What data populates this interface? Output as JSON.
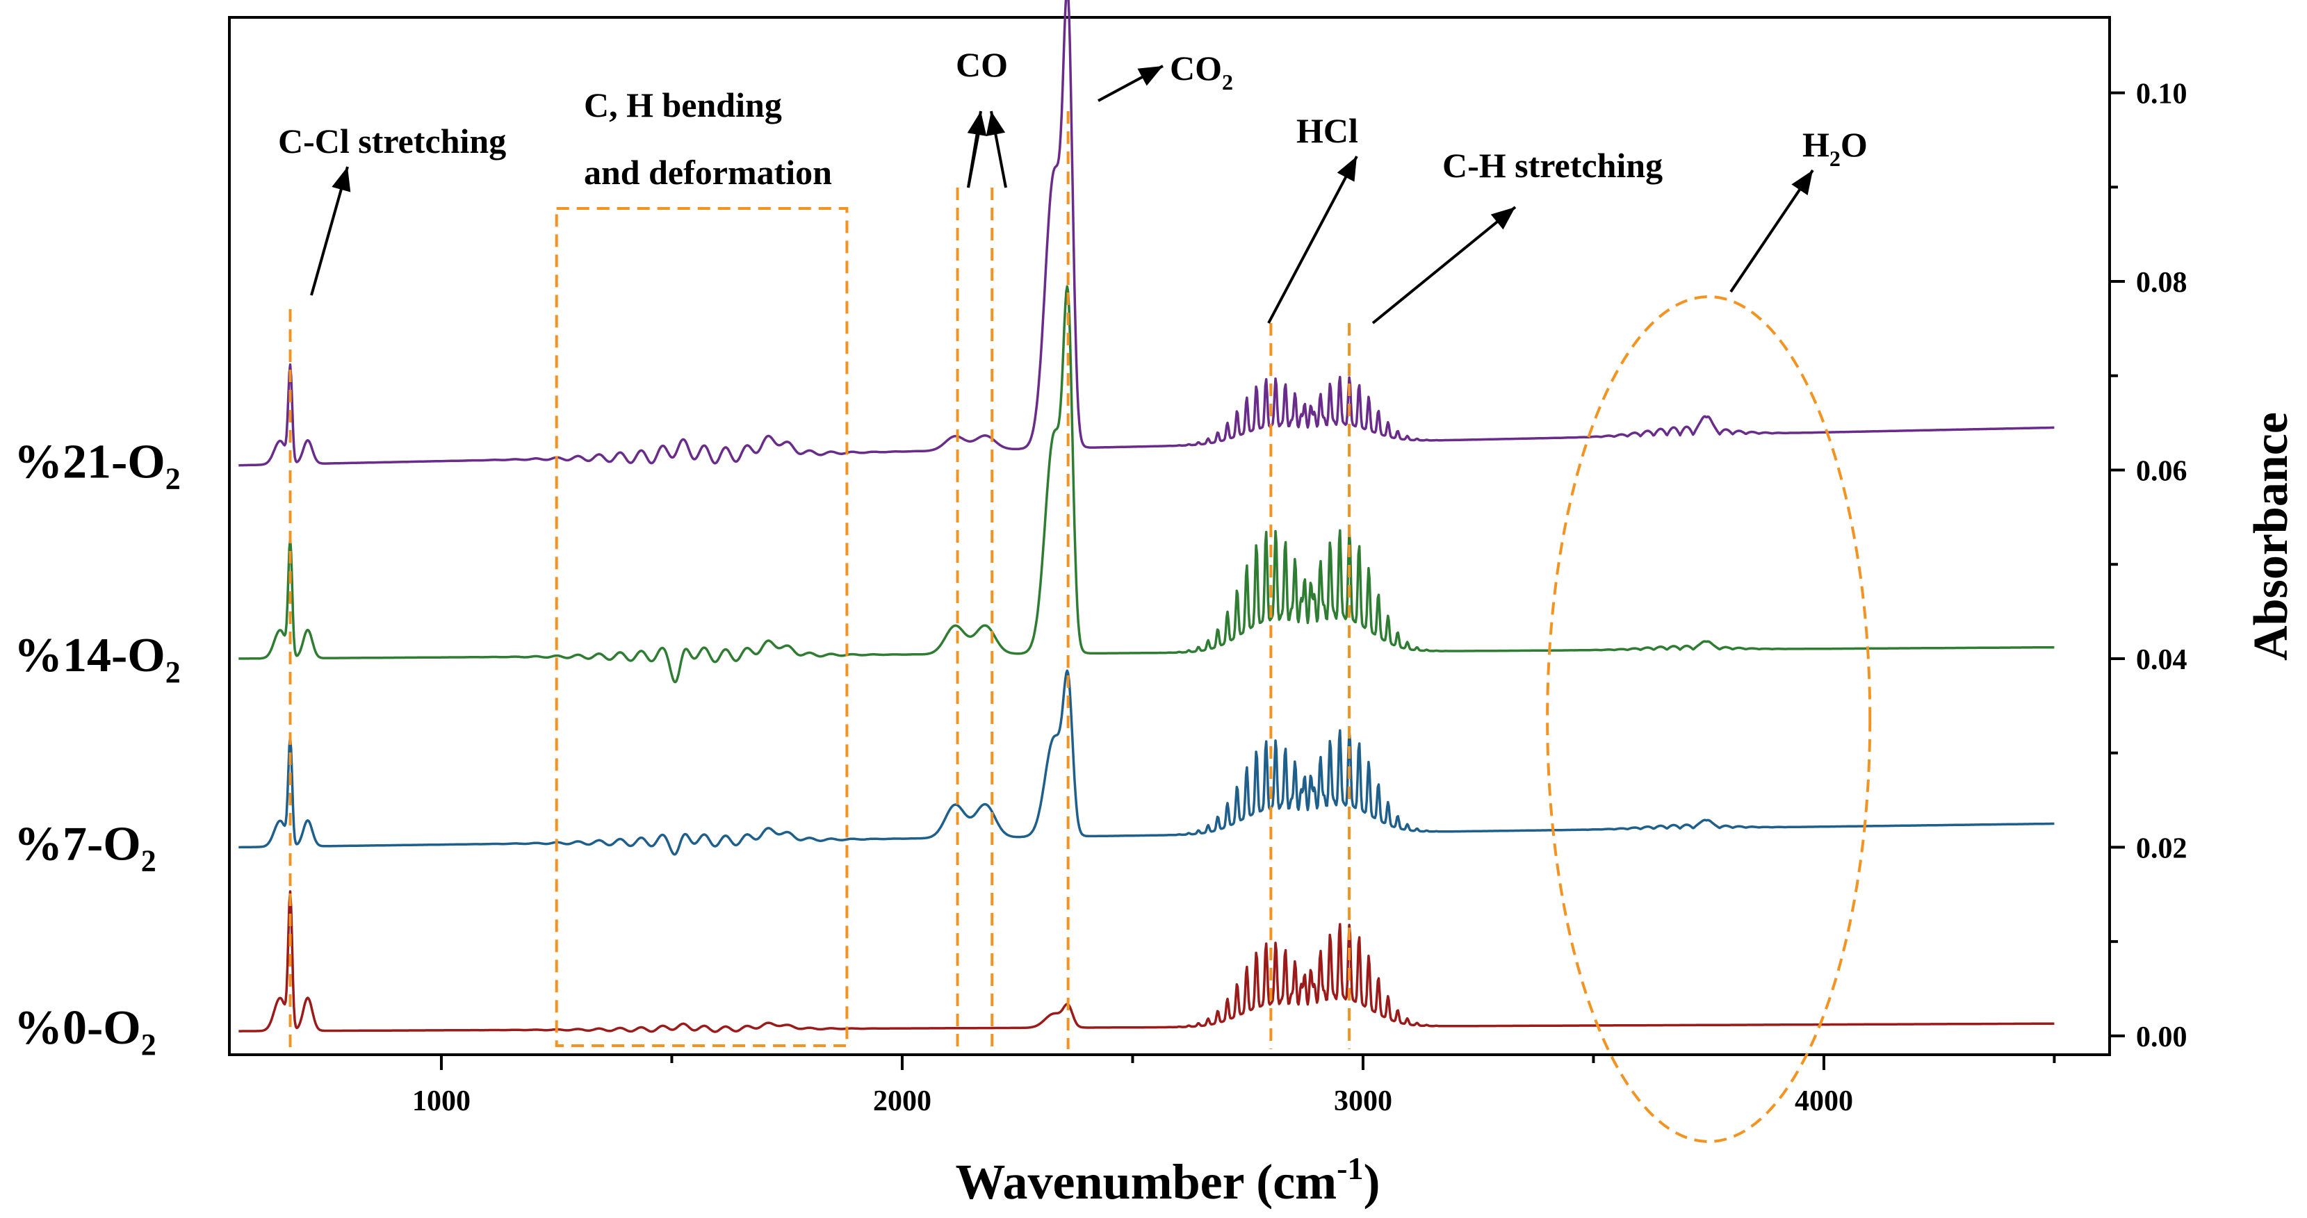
{
  "chart_data": {
    "type": "line",
    "title": "",
    "xlabel": "Wavenumber (cm",
    "xlabel_sup": "-1",
    "xlabel_end": ")",
    "ylabel": "Absorbance",
    "xlim": [
      540,
      4620
    ],
    "ylim": [
      -0.002,
      0.108
    ],
    "x_ticks": [
      1000,
      2000,
      3000,
      4000
    ],
    "y_ticks": [
      0.0,
      0.02,
      0.04,
      0.06,
      0.08,
      0.1
    ],
    "y_tick_labels": [
      "0.00",
      "0.02",
      "0.04",
      "0.06",
      "0.08",
      "0.10"
    ],
    "y_axis_side": "right",
    "series": [
      {
        "name": "%0-O",
        "sub": "2",
        "color": "#9b1b1b",
        "baseline": 0.0005,
        "baseline_end": 0.0013,
        "scale": 1.0,
        "peaks": {
          "ccl": 0.014,
          "co": 0.0,
          "co2": 0.002,
          "hcl": 0.009,
          "ch": 0.011,
          "h2o": 0.0,
          "neg": 0.0,
          "bend": 0.0005
        }
      },
      {
        "name": "%7-O",
        "sub": "2",
        "color": "#1f5f8b",
        "baseline": 0.02,
        "baseline_end": 0.0225,
        "scale": 1.0,
        "peaks": {
          "ccl": 0.011,
          "co": 0.0035,
          "co2": 0.014,
          "hcl": 0.01,
          "ch": 0.011,
          "h2o": 0.0008,
          "neg": -0.0015,
          "bend": 0.001
        }
      },
      {
        "name": "%14-O",
        "sub": "2",
        "color": "#2e7d32",
        "baseline": 0.04,
        "baseline_end": 0.0412,
        "scale": 1.0,
        "peaks": {
          "ccl": 0.012,
          "co": 0.003,
          "co2": 0.031,
          "hcl": 0.013,
          "ch": 0.013,
          "h2o": 0.0008,
          "neg": -0.003,
          "bend": 0.0012
        }
      },
      {
        "name": "%21-O",
        "sub": "2",
        "color": "#6a2c8a",
        "baseline": 0.0605,
        "baseline_end": 0.0645,
        "scale": 1.0,
        "peaks": {
          "ccl": 0.01,
          "co": 0.0015,
          "co2": 0.039,
          "hcl": 0.007,
          "ch": 0.007,
          "h2o": 0.0018,
          "neg": 0.0,
          "bend": 0.0015
        }
      }
    ],
    "annotations": [
      {
        "text": "C-Cl stretching",
        "x": 670
      },
      {
        "text": "C, H bending",
        "text2": "and deformation",
        "x_range": [
          1250,
          1880
        ]
      },
      {
        "text": "CO",
        "x": [
          2120,
          2195
        ]
      },
      {
        "text": "CO",
        "sub": "2",
        "x": 2360
      },
      {
        "text": "HCl",
        "x": 2800
      },
      {
        "text": "C-H stretching",
        "x": 2970
      },
      {
        "text": "H",
        "sub": "2",
        "text_end": "O",
        "x_center": 3750
      }
    ]
  }
}
